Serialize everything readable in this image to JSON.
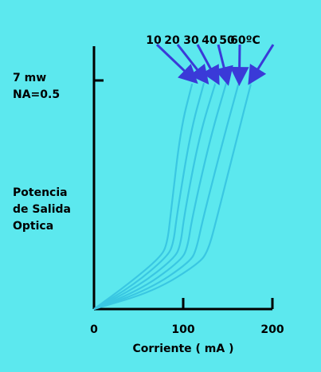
{
  "chart_data": {
    "type": "line",
    "xlabel": "Corriente  ( mA )",
    "ylabel_lines": [
      "Potencia",
      "de Salida",
      "Optica"
    ],
    "y_max_label_lines": [
      "7 mw",
      "NA=0.5"
    ],
    "xlim": [
      0,
      200
    ],
    "ylim": [
      0,
      7
    ],
    "x_ticks": [
      0,
      100,
      200
    ],
    "temperature_labels": [
      "10",
      "20",
      "30",
      "40",
      "50",
      "60ºC"
    ],
    "series": [
      {
        "name": "10",
        "values": [
          [
            0,
            0
          ],
          [
            40,
            0.8
          ],
          [
            75,
            1.6
          ],
          [
            82,
            2.0
          ],
          [
            86,
            2.9
          ],
          [
            97,
            5.5
          ],
          [
            110,
            6.9
          ]
        ]
      },
      {
        "name": "20",
        "values": [
          [
            0,
            0
          ],
          [
            45,
            0.75
          ],
          [
            82,
            1.6
          ],
          [
            89,
            2.0
          ],
          [
            93,
            2.9
          ],
          [
            108,
            5.4
          ],
          [
            123,
            6.9
          ]
        ]
      },
      {
        "name": "30",
        "values": [
          [
            0,
            0
          ],
          [
            50,
            0.7
          ],
          [
            90,
            1.55
          ],
          [
            97,
            1.95
          ],
          [
            101,
            2.85
          ],
          [
            118,
            5.3
          ],
          [
            136,
            6.9
          ]
        ]
      },
      {
        "name": "40",
        "values": [
          [
            0,
            0
          ],
          [
            56,
            0.65
          ],
          [
            98,
            1.5
          ],
          [
            105,
            1.9
          ],
          [
            110,
            2.8
          ],
          [
            130,
            5.2
          ],
          [
            148,
            6.9
          ]
        ]
      },
      {
        "name": "50",
        "values": [
          [
            0,
            0
          ],
          [
            62,
            0.6
          ],
          [
            108,
            1.45
          ],
          [
            115,
            1.85
          ],
          [
            122,
            2.75
          ],
          [
            144,
            5.1
          ],
          [
            162,
            6.9
          ]
        ]
      },
      {
        "name": "60",
        "values": [
          [
            0,
            0
          ],
          [
            68,
            0.55
          ],
          [
            118,
            1.4
          ],
          [
            128,
            1.8
          ],
          [
            137,
            2.7
          ],
          [
            158,
            5.0
          ],
          [
            176,
            6.9
          ]
        ]
      }
    ],
    "colors": {
      "background": "#5ce8ee",
      "curve": "#3ac7e2",
      "arrow": "#3a3ad8",
      "axis": "#000000"
    }
  }
}
